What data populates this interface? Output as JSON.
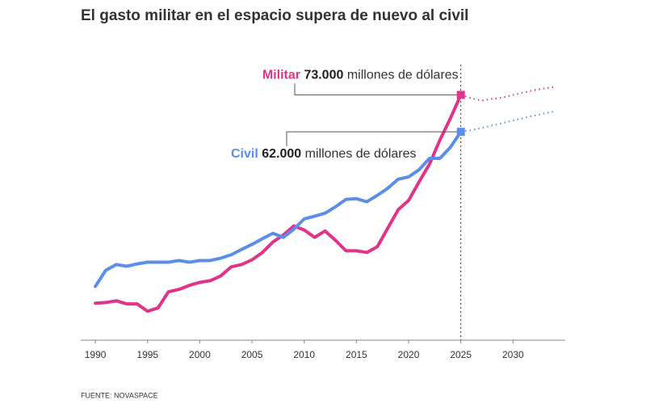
{
  "chart_data": {
    "type": "line",
    "title": "El gasto militar en el espacio supera de nuevo al civil",
    "source": "FUENTE: NOVASPACE",
    "x": [
      1990,
      1991,
      1992,
      1993,
      1994,
      1995,
      1996,
      1997,
      1998,
      1999,
      2000,
      2001,
      2002,
      2003,
      2004,
      2005,
      2006,
      2007,
      2008,
      2009,
      2010,
      2011,
      2012,
      2013,
      2014,
      2015,
      2016,
      2017,
      2018,
      2019,
      2020,
      2021,
      2022,
      2023,
      2024,
      2025,
      2026,
      2027,
      2028,
      2029,
      2030,
      2031,
      2032,
      2033,
      2034
    ],
    "series": [
      {
        "name": "Militar",
        "color": "#e0338a",
        "values": [
          11000,
          11200,
          11700,
          10800,
          10800,
          8600,
          9600,
          14400,
          15100,
          16300,
          17200,
          17700,
          19100,
          21800,
          22500,
          23900,
          26100,
          29200,
          31300,
          34000,
          32800,
          30600,
          32500,
          29700,
          26600,
          26600,
          26100,
          27800,
          33300,
          38800,
          41600,
          47100,
          52400,
          59600,
          66000,
          73000,
          null,
          null,
          null,
          null,
          null,
          null,
          null,
          null,
          null
        ],
        "projected_values": [
          null,
          null,
          null,
          null,
          null,
          null,
          null,
          null,
          null,
          null,
          null,
          null,
          null,
          null,
          null,
          null,
          null,
          null,
          null,
          null,
          null,
          null,
          null,
          null,
          null,
          null,
          null,
          null,
          null,
          null,
          null,
          null,
          null,
          null,
          null,
          73000,
          72000,
          71300,
          71800,
          72200,
          73000,
          73700,
          74400,
          74900,
          75400
        ],
        "annotation": {
          "value": 73000,
          "value_label": "73.000",
          "text": "millones de dólares"
        }
      },
      {
        "name": "Civil",
        "color": "#5b8ee6",
        "values": [
          16000,
          20800,
          22500,
          22000,
          22700,
          23200,
          23200,
          23200,
          23700,
          23200,
          23700,
          23700,
          24400,
          25400,
          27000,
          28500,
          30200,
          31800,
          30600,
          33000,
          36100,
          36900,
          37800,
          39700,
          41900,
          42100,
          41200,
          43100,
          45200,
          47900,
          48600,
          50700,
          54100,
          54100,
          57400,
          62000,
          null,
          null,
          null,
          null,
          null,
          null,
          null,
          null,
          null
        ],
        "projected_values": [
          null,
          null,
          null,
          null,
          null,
          null,
          null,
          null,
          null,
          null,
          null,
          null,
          null,
          null,
          null,
          null,
          null,
          null,
          null,
          null,
          null,
          null,
          null,
          null,
          null,
          null,
          null,
          null,
          null,
          null,
          null,
          null,
          null,
          null,
          null,
          62000,
          62500,
          63200,
          63900,
          64600,
          65400,
          66100,
          66800,
          67500,
          68100
        ],
        "annotation": {
          "value": 62000,
          "value_label": "62.000",
          "text": "millones de dólares"
        }
      }
    ],
    "reference_x": 2025,
    "xlim": [
      1988.6,
      2035
    ],
    "xticks": [
      1990,
      1995,
      2000,
      2005,
      2010,
      2015,
      2020,
      2025,
      2030
    ],
    "ylim": [
      0,
      82000
    ]
  }
}
